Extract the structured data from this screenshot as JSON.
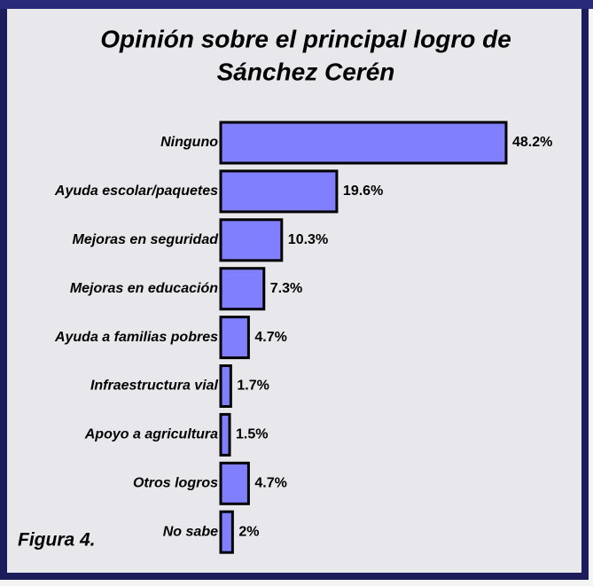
{
  "chart_data": {
    "type": "bar",
    "orientation": "horizontal",
    "title": [
      "Opinión sobre el principal logro de",
      "Sánchez Cerén"
    ],
    "annotation": "Figura 4.",
    "categories": [
      "Ninguno",
      "Ayuda escolar/paquetes",
      "Mejoras en seguridad",
      "Mejoras en educación",
      "Ayuda a familias pobres",
      "Infraestructura vial",
      "Apoyo a agricultura",
      "Otros logros",
      "No sabe"
    ],
    "values": [
      48.2,
      19.6,
      10.3,
      7.3,
      4.7,
      1.7,
      1.5,
      4.7,
      2
    ],
    "value_labels": [
      "48.2%",
      "19.6%",
      "10.3%",
      "7.3%",
      "4.7%",
      "1.7%",
      "1.5%",
      "4.7%",
      "2%"
    ],
    "color": "#8080ff"
  }
}
